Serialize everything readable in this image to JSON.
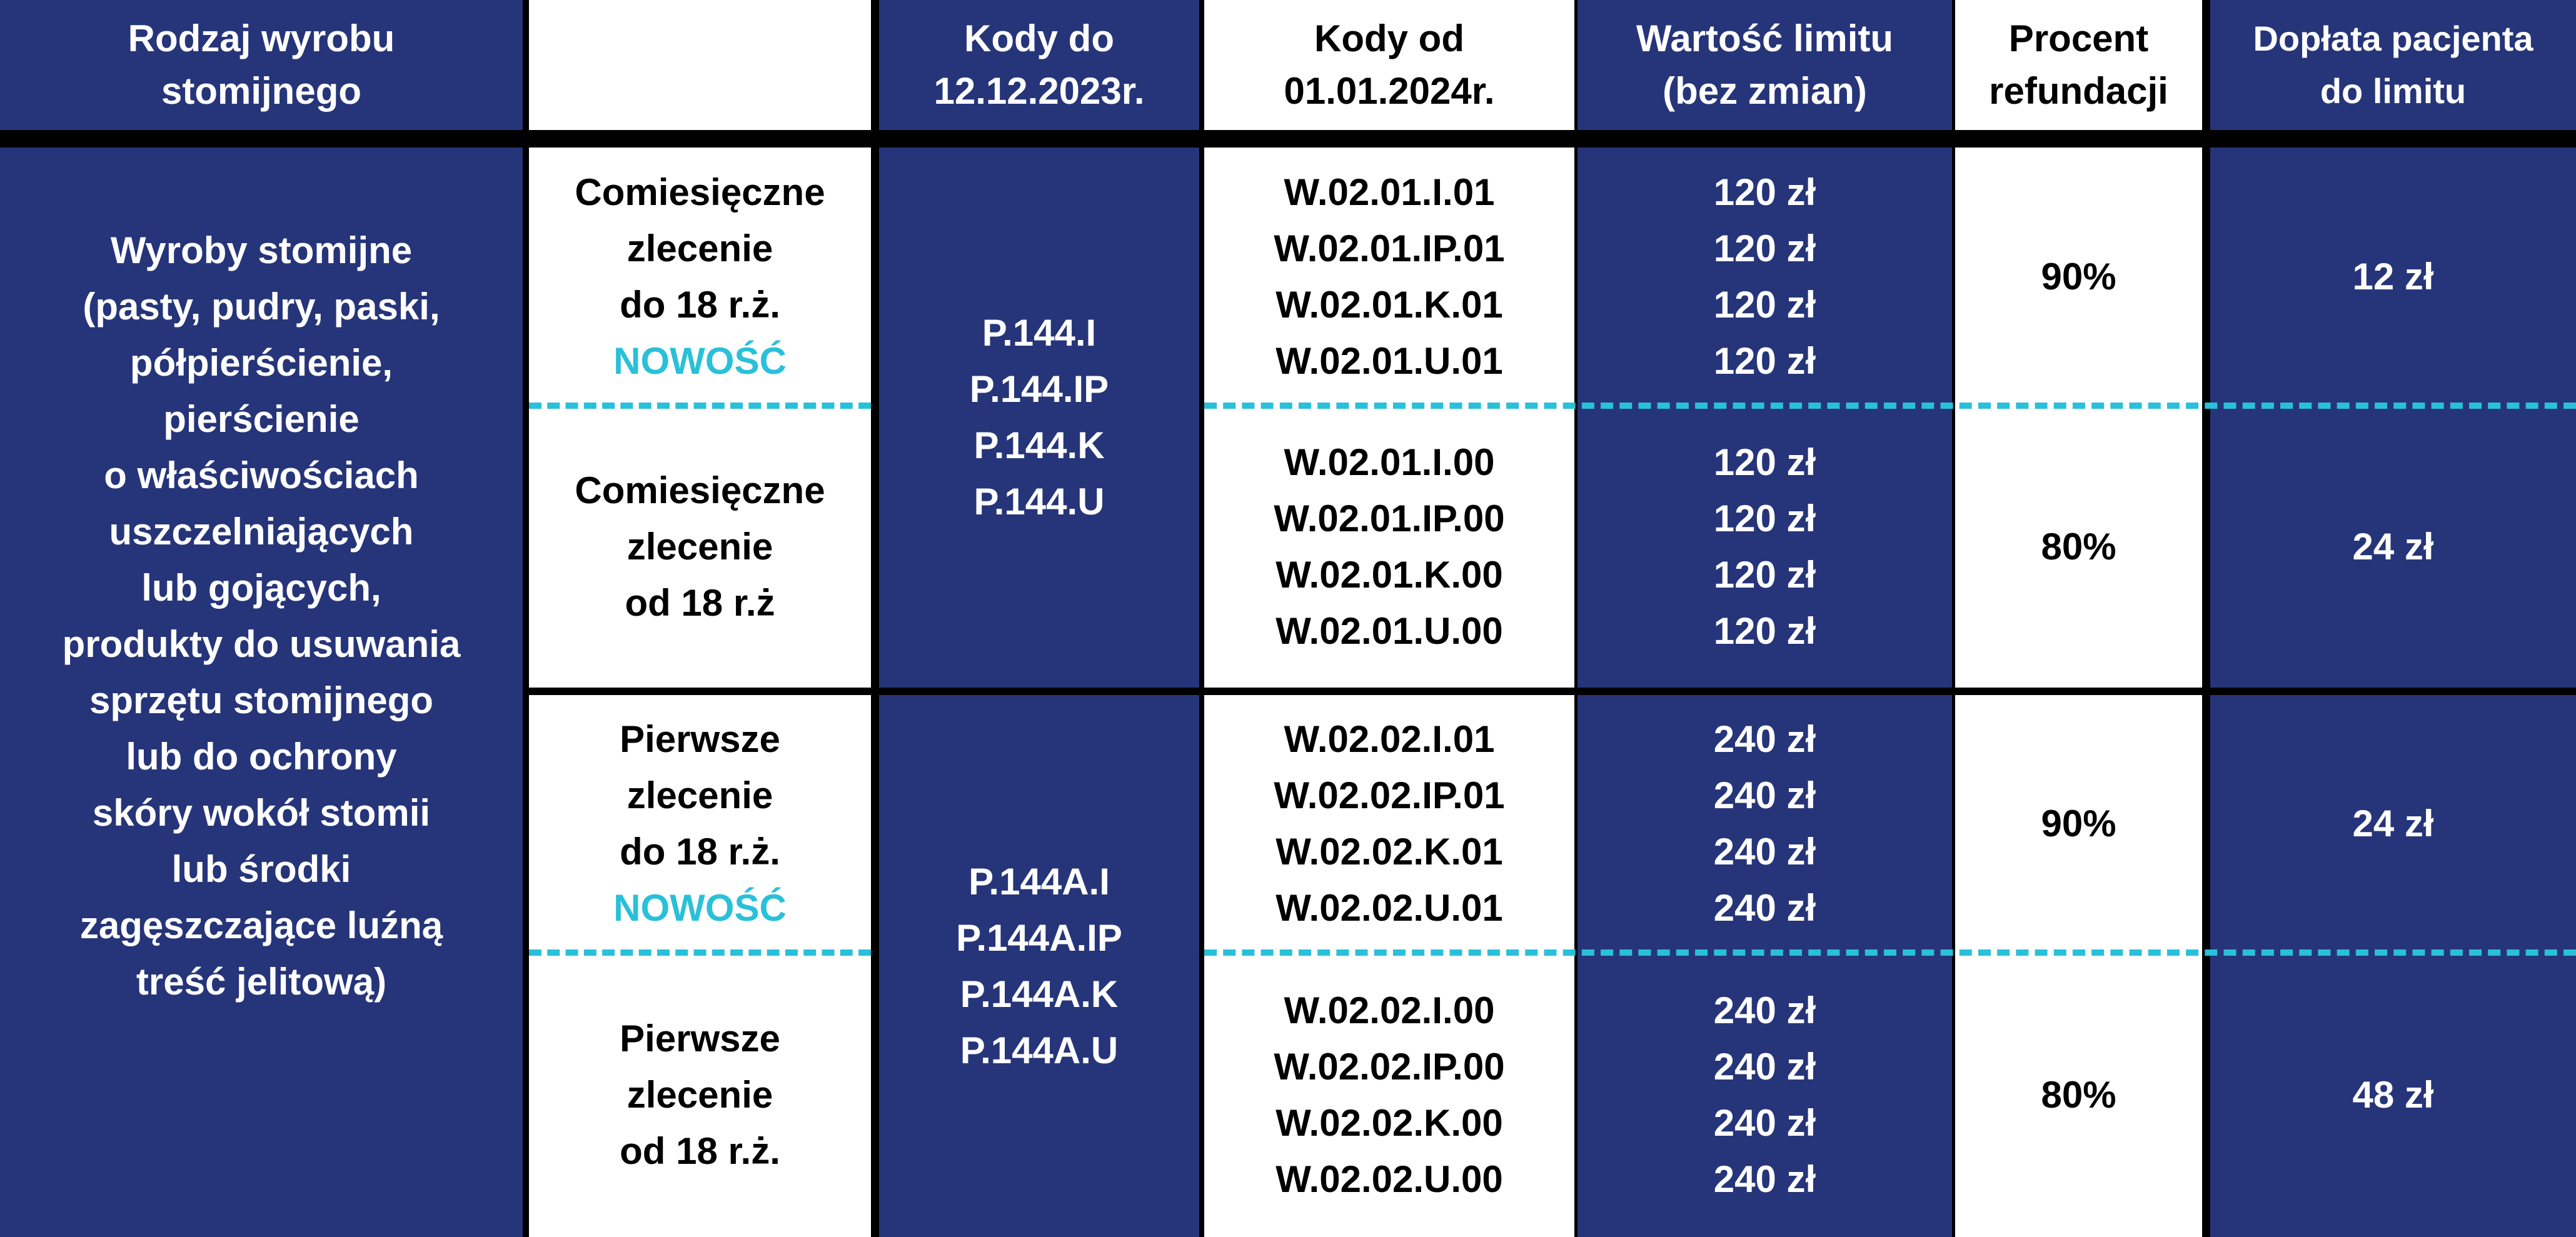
{
  "colors": {
    "blue": "#263579",
    "cyan": "#29c0d9",
    "white": "#ffffff",
    "black": "#000000"
  },
  "headers": [
    "Rodzaj wyrobu stomijnego",
    "",
    "Kody do 12.12.2023r.",
    "Kody od 01.01.2024r.",
    "Wartość limitu (bez zmian)",
    "Procent refundacji",
    "Dopłata pacjenta do limitu"
  ],
  "header_lines": {
    "c1": [
      "Rodzaj wyrobu",
      "stomijnego"
    ],
    "c3": [
      "Kody do",
      "12.12.2023r."
    ],
    "c4": [
      "Kody od",
      "01.01.2024r."
    ],
    "c5": [
      "Wartość limitu",
      "(bez zmian)"
    ],
    "c6": [
      "Procent",
      "refundacji"
    ],
    "c7": [
      "Dopłata pacjenta",
      "do limitu"
    ]
  },
  "product_lines": [
    "Wyroby stomijne",
    "(pasty, pudry, paski,",
    "półpierścienie,",
    "pierścienie",
    "o właściwościach",
    "uszczelniających",
    "lub gojących,",
    "produkty do usuwania",
    "sprzętu stomijnego",
    "lub do ochrony",
    "skóry wokół stomii",
    "lub środki",
    "zagęszczające luźną",
    "treść jelitową)"
  ],
  "groups": [
    {
      "old_codes": [
        "P.144.I",
        "P.144.IP",
        "P.144.K",
        "P.144.U"
      ],
      "rows": [
        {
          "order": [
            "Comiesięczne",
            "zlecenie",
            "do 18 r.ż."
          ],
          "badge": "NOWOŚĆ",
          "codes": [
            "W.02.01.I.01",
            "W.02.01.IP.01",
            "W.02.01.K.01",
            "W.02.01.U.01"
          ],
          "limits": [
            "120 zł",
            "120 zł",
            "120 zł",
            "120 zł"
          ],
          "percent": "90%",
          "copay": "12 zł"
        },
        {
          "order": [
            "Comiesięczne",
            "zlecenie",
            "od 18 r.ż"
          ],
          "badge": "",
          "codes": [
            "W.02.01.I.00",
            "W.02.01.IP.00",
            "W.02.01.K.00",
            "W.02.01.U.00"
          ],
          "limits": [
            "120 zł",
            "120 zł",
            "120 zł",
            "120 zł"
          ],
          "percent": "80%",
          "copay": "24 zł"
        }
      ]
    },
    {
      "old_codes": [
        "P.144A.I",
        "P.144A.IP",
        "P.144A.K",
        "P.144A.U"
      ],
      "rows": [
        {
          "order": [
            "Pierwsze",
            "zlecenie",
            "do 18 r.ż."
          ],
          "badge": "NOWOŚĆ",
          "codes": [
            "W.02.02.I.01",
            "W.02.02.IP.01",
            "W.02.02.K.01",
            "W.02.02.U.01"
          ],
          "limits": [
            "240 zł",
            "240 zł",
            "240 zł",
            "240 zł"
          ],
          "percent": "90%",
          "copay": "24 zł"
        },
        {
          "order": [
            "Pierwsze",
            "zlecenie",
            "od 18 r.ż."
          ],
          "badge": "",
          "codes": [
            "W.02.02.I.00",
            "W.02.02.IP.00",
            "W.02.02.K.00",
            "W.02.02.U.00"
          ],
          "limits": [
            "240 zł",
            "240 zł",
            "240 zł",
            "240 zł"
          ],
          "percent": "80%",
          "copay": "48 zł"
        }
      ]
    }
  ]
}
